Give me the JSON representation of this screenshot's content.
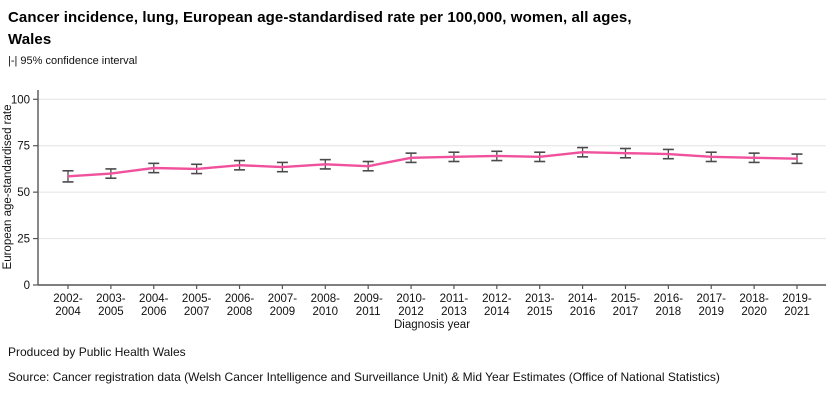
{
  "header": {
    "title_lines": [
      "Cancer incidence, lung, European age-standardised rate per 100,000, women, all ages,",
      "Wales"
    ],
    "subtitle": "|-| 95% confidence interval"
  },
  "footer": {
    "produced_by": "Produced by Public Health Wales",
    "source": "Source: Cancer registration data (Welsh Cancer Intelligence and Surveillance Unit) & Mid Year Estimates (Office of National Statistics)"
  },
  "chart_data": {
    "type": "line",
    "title": "Cancer incidence, lung, European age-standardised rate per 100,000, women, all ages, Wales",
    "xlabel": "Diagnosis year",
    "ylabel": "European age-standardised rate",
    "categories": [
      "2002-2004",
      "2003-2005",
      "2004-2006",
      "2005-2007",
      "2006-2008",
      "2007-2009",
      "2008-2010",
      "2009-2011",
      "2010-2012",
      "2011-2013",
      "2012-2014",
      "2013-2015",
      "2014-2016",
      "2015-2017",
      "2016-2018",
      "2017-2019",
      "2018-2020",
      "2019-2021"
    ],
    "values": [
      58.5,
      60.0,
      63.0,
      62.5,
      64.5,
      63.5,
      65.0,
      64.0,
      68.5,
      69.0,
      69.5,
      69.0,
      71.5,
      71.0,
      70.5,
      69.0,
      68.5,
      68.0
    ],
    "ci_low": [
      55.5,
      57.5,
      60.5,
      60.0,
      62.0,
      61.0,
      62.5,
      61.5,
      66.0,
      66.5,
      67.0,
      66.5,
      69.0,
      68.5,
      68.0,
      66.5,
      66.0,
      65.5
    ],
    "ci_high": [
      61.5,
      62.5,
      65.5,
      65.0,
      67.0,
      66.0,
      67.5,
      66.5,
      71.0,
      71.5,
      72.0,
      71.5,
      74.0,
      73.5,
      73.0,
      71.5,
      71.0,
      70.5
    ],
    "yticks": [
      0,
      25,
      50,
      75,
      100
    ],
    "ylim": [
      0,
      105
    ],
    "grid": "horizontal",
    "legend": "none",
    "line_color": "#f0509c",
    "error_bar_color": "#4a4a4a",
    "grid_color": "#e4e4e4",
    "axis_color": "#555555"
  }
}
